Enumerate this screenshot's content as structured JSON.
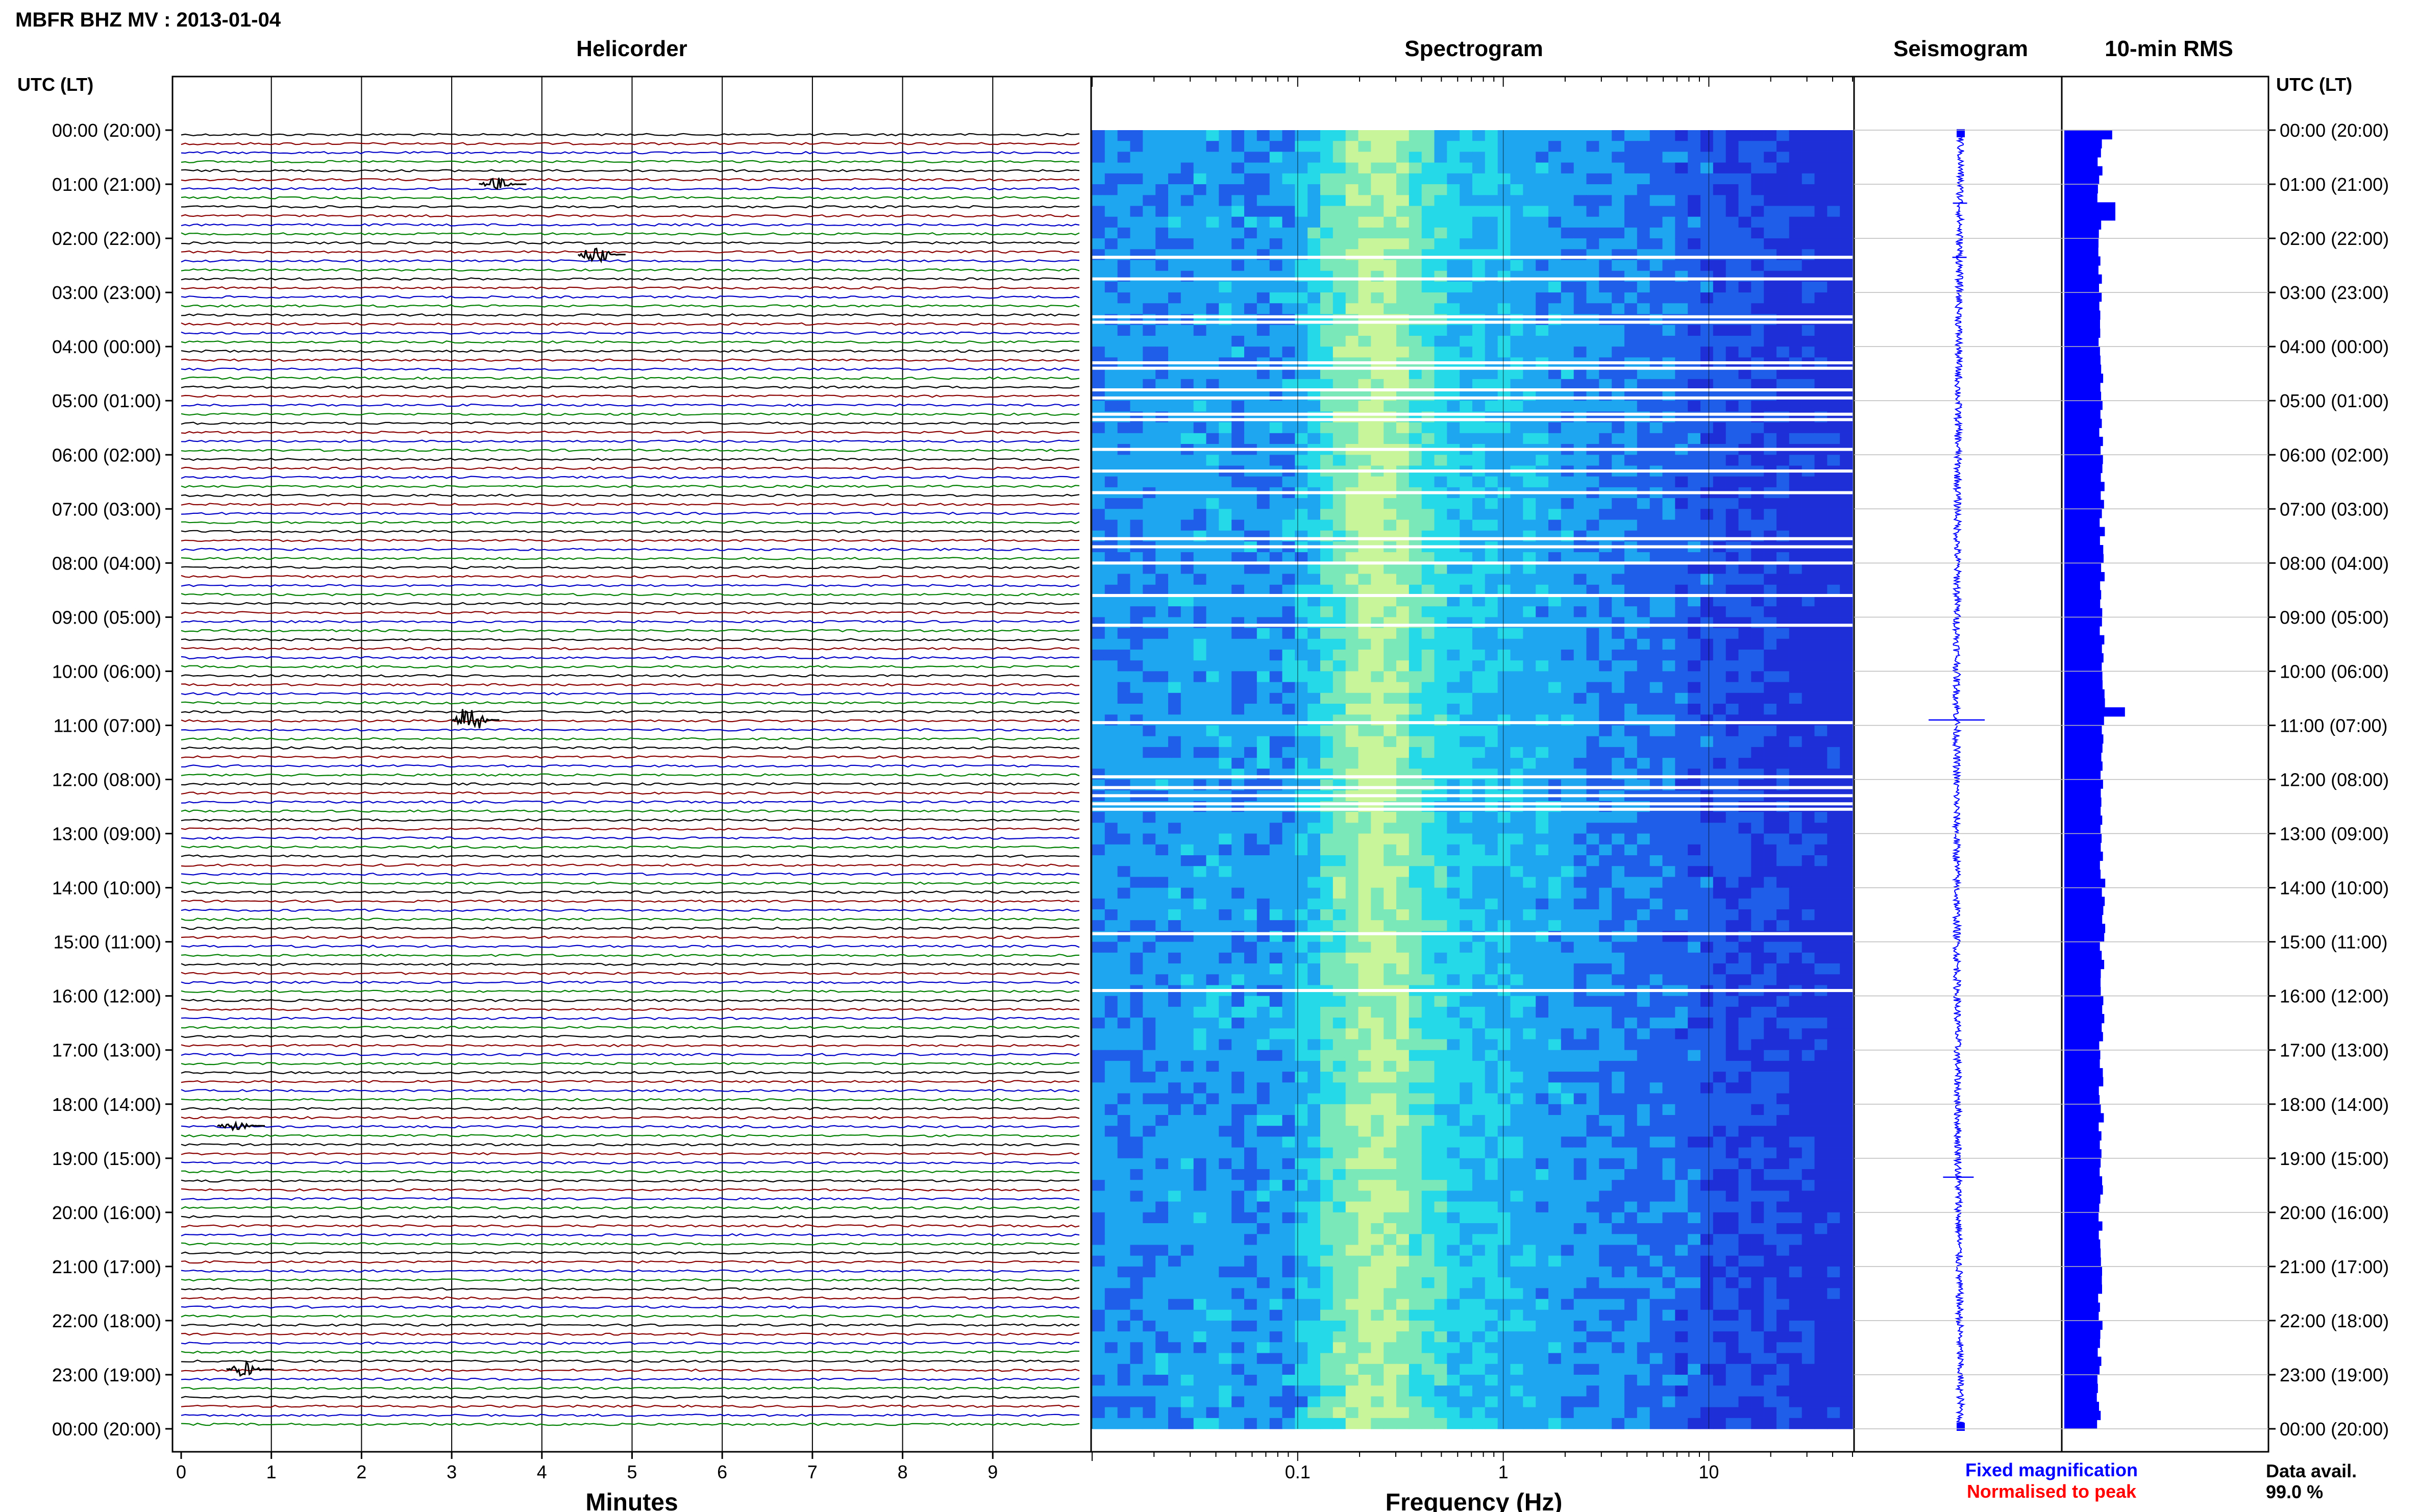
{
  "header": {
    "title": "MBFR BHZ MV : 2013-01-04"
  },
  "panels": {
    "helicorder": "Helicorder",
    "spectrogram": "Spectrogram",
    "seismogram": "Seismogram",
    "rms": "10-min RMS"
  },
  "time_axis": {
    "header": "UTC (LT)",
    "labels": [
      "00:00 (20:00)",
      "01:00 (21:00)",
      "02:00 (22:00)",
      "03:00 (23:00)",
      "04:00 (00:00)",
      "05:00 (01:00)",
      "06:00 (02:00)",
      "07:00 (03:00)",
      "08:00 (04:00)",
      "09:00 (05:00)",
      "10:00 (06:00)",
      "11:00 (07:00)",
      "12:00 (08:00)",
      "13:00 (09:00)",
      "14:00 (10:00)",
      "15:00 (11:00)",
      "16:00 (12:00)",
      "17:00 (13:00)",
      "18:00 (14:00)",
      "19:00 (15:00)",
      "20:00 (16:00)",
      "21:00 (17:00)",
      "22:00 (18:00)",
      "23:00 (19:00)",
      "00:00 (20:00)"
    ]
  },
  "legend": {
    "fixed": "Fixed magnification",
    "normalised": "Normalised to peak",
    "fixed_color": "#0000ff",
    "normalised_color": "#ff0000"
  },
  "availability": {
    "label": "Data avail.",
    "value": "99.0 %"
  },
  "chart_data": [
    {
      "type": "line",
      "panel": "helicorder",
      "xlabel": "Minutes",
      "x_ticks": [
        "0",
        "1",
        "2",
        "3",
        "4",
        "5",
        "6",
        "7",
        "8",
        "9"
      ],
      "xlim": [
        0,
        10
      ],
      "rows_per_hour": 6,
      "hours": 24,
      "trace_colors": [
        "#000000",
        "#8b0000",
        "#0000c8",
        "#008000"
      ],
      "events": [
        {
          "hour": 10.9,
          "minute": 3.2,
          "amp": 3.5
        },
        {
          "hour": 2.3,
          "minute": 4.6,
          "amp": 2.0
        },
        {
          "hour": 1.0,
          "minute": 3.5,
          "amp": 1.3
        },
        {
          "hour": 22.9,
          "minute": 0.7,
          "amp": 1.5
        },
        {
          "hour": 18.4,
          "minute": 0.6,
          "amp": 1.2
        }
      ]
    },
    {
      "type": "heatmap",
      "panel": "spectrogram",
      "xlabel": "Frequency (Hz)",
      "x_ticks": [
        "0.1",
        "1",
        "10"
      ],
      "x_scale": "log",
      "xlim": [
        0.01,
        50
      ],
      "colormap": [
        "#1e2fd8",
        "#1f5ee8",
        "#1fa6f0",
        "#26d9e8",
        "#7ae8b8",
        "#c8f59a"
      ],
      "gaps_hours": [
        2.35,
        2.75,
        3.45,
        3.55,
        4.3,
        4.4,
        4.8,
        4.95,
        5.25,
        5.35,
        5.9,
        6.3,
        6.7,
        7.55,
        7.7,
        8.0,
        8.6,
        9.15,
        10.95,
        11.95,
        12.15,
        12.3,
        12.45,
        12.55,
        14.85,
        15.9
      ]
    },
    {
      "type": "line",
      "panel": "seismogram",
      "spikes_hours": [
        10.9,
        19.35,
        2.35,
        1.35
      ]
    },
    {
      "type": "bar",
      "panel": "rms",
      "orientation": "horizontal",
      "bins_per_hour": 6,
      "baseline": 0.55,
      "peaks": [
        {
          "hour": 10.8,
          "value": 0.95
        },
        {
          "hour": 1.5,
          "value": 0.8
        },
        {
          "hour": 0.05,
          "value": 0.75
        }
      ]
    }
  ]
}
